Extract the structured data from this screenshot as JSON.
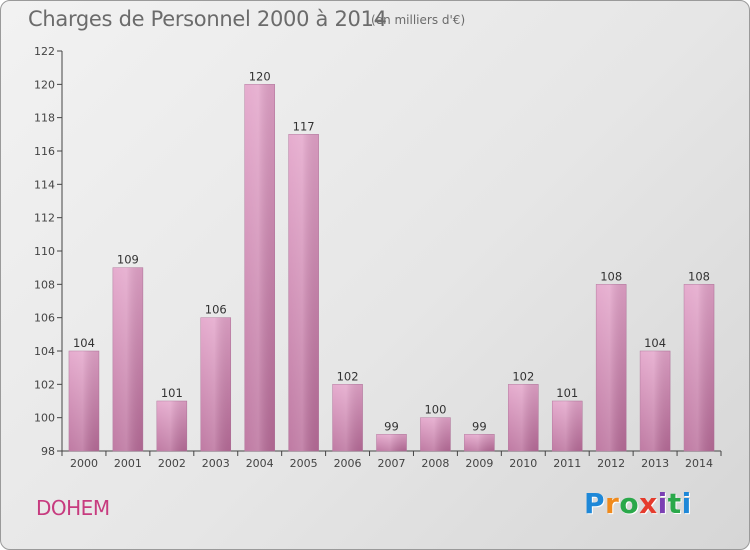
{
  "header": {
    "title": "Charges de Personnel 2000 à 2014",
    "unit": "(en milliers d'€)"
  },
  "footer": {
    "place": "DOHEM",
    "logo": [
      "P",
      "r",
      "o",
      "x",
      "i",
      "t",
      "i"
    ]
  },
  "colors": {
    "bar": "#d98fbb",
    "place": "#c73b7f",
    "logo": [
      "#1e88d8",
      "#f08a1c",
      "#2aa84a",
      "#e53b2c",
      "#7b3fb3",
      "#2aa84a",
      "#1e88d8"
    ]
  },
  "chart_data": {
    "type": "bar",
    "title": "Charges de Personnel 2000 à 2014",
    "categories": [
      "2000",
      "2001",
      "2002",
      "2003",
      "2004",
      "2005",
      "2006",
      "2007",
      "2008",
      "2009",
      "2010",
      "2011",
      "2012",
      "2013",
      "2014"
    ],
    "values": [
      104,
      109,
      101,
      106,
      120,
      117,
      102,
      99,
      100,
      99,
      102,
      101,
      108,
      104,
      108
    ],
    "data_labels": [
      "104",
      "109",
      "101",
      "106",
      "120",
      "117",
      "102",
      "99",
      "100",
      "99",
      "102",
      "101",
      "108",
      "104",
      "108"
    ],
    "ylim": [
      98,
      122
    ],
    "yticks": [
      "98",
      "100",
      "102",
      "104",
      "106",
      "108",
      "110",
      "112",
      "114",
      "116",
      "118",
      "120",
      "122"
    ],
    "grid": false,
    "legend": "none"
  }
}
